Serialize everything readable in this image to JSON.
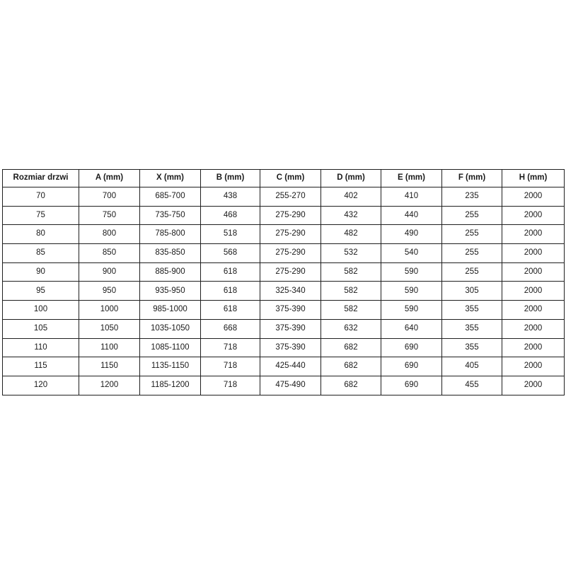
{
  "page": {
    "background_color": "#ffffff",
    "text_color": "#1a1a1a",
    "border_color": "#1f1f1f"
  },
  "table": {
    "columns": [
      "Rozmiar drzwi",
      "A (mm)",
      "X (mm)",
      "B (mm)",
      "C (mm)",
      "D (mm)",
      "E (mm)",
      "F (mm)",
      "H (mm)"
    ],
    "rows": [
      [
        "70",
        "700",
        "685-700",
        "438",
        "255-270",
        "402",
        "410",
        "235",
        "2000"
      ],
      [
        "75",
        "750",
        "735-750",
        "468",
        "275-290",
        "432",
        "440",
        "255",
        "2000"
      ],
      [
        "80",
        "800",
        "785-800",
        "518",
        "275-290",
        "482",
        "490",
        "255",
        "2000"
      ],
      [
        "85",
        "850",
        "835-850",
        "568",
        "275-290",
        "532",
        "540",
        "255",
        "2000"
      ],
      [
        "90",
        "900",
        "885-900",
        "618",
        "275-290",
        "582",
        "590",
        "255",
        "2000"
      ],
      [
        "95",
        "950",
        "935-950",
        "618",
        "325-340",
        "582",
        "590",
        "305",
        "2000"
      ],
      [
        "100",
        "1000",
        "985-1000",
        "618",
        "375-390",
        "582",
        "590",
        "355",
        "2000"
      ],
      [
        "105",
        "1050",
        "1035-1050",
        "668",
        "375-390",
        "632",
        "640",
        "355",
        "2000"
      ],
      [
        "110",
        "1100",
        "1085-1100",
        "718",
        "375-390",
        "682",
        "690",
        "355",
        "2000"
      ],
      [
        "115",
        "1150",
        "1135-1150",
        "718",
        "425-440",
        "682",
        "690",
        "405",
        "2000"
      ],
      [
        "120",
        "1200",
        "1185-1200",
        "718",
        "475-490",
        "682",
        "690",
        "455",
        "2000"
      ]
    ]
  }
}
